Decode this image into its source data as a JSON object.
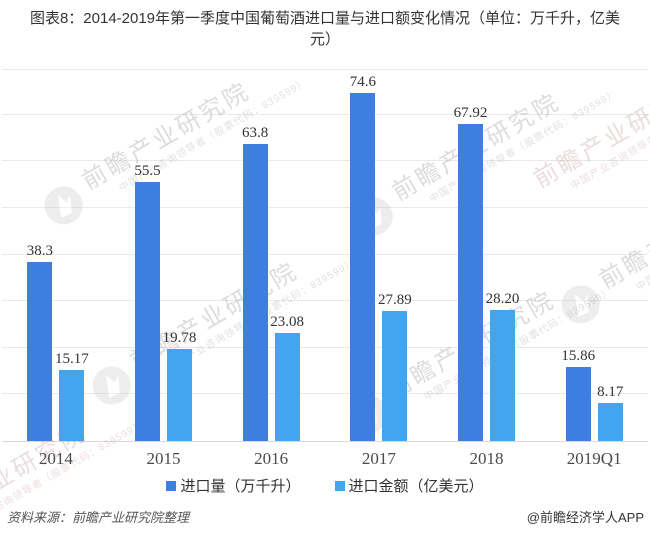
{
  "title": "图表8：2014-2019年第一季度中国葡萄酒进口量与进口额变化情况（单位：万千升，亿美元）",
  "chart_data": {
    "type": "bar",
    "categories": [
      "2014",
      "2015",
      "2016",
      "2017",
      "2018",
      "2019Q1"
    ],
    "series": [
      {
        "name": "进口量（万千升）",
        "values": [
          38.3,
          55.5,
          63.8,
          74.6,
          67.92,
          15.86
        ],
        "labels": [
          "38.3",
          "55.5",
          "63.8",
          "74.6",
          "67.92",
          "15.86"
        ],
        "color": "#3e7ee0"
      },
      {
        "name": "进口金额（亿美元）",
        "values": [
          15.17,
          19.78,
          23.08,
          27.89,
          28.2,
          8.17
        ],
        "labels": [
          "15.17",
          "19.78",
          "23.08",
          "27.89",
          "28.20",
          "8.17"
        ],
        "color": "#41a6ee"
      }
    ],
    "title": "图表8：2014-2019年第一季度中国葡萄酒进口量与进口额变化情况（单位：万千升，亿美元）",
    "xlabel": "",
    "ylabel": "",
    "ylim": [
      0,
      80
    ],
    "gridline_step": 10,
    "grid": true,
    "legend_position": "bottom",
    "y_axis_labels_visible": false
  },
  "footer": {
    "source": "资料来源：前瞻产业研究院整理",
    "credit": "@前瞻经济学人APP"
  },
  "watermark": {
    "text": "前瞻产业研究院",
    "subtext": "中国产业咨询领导者（股票代码：839599）"
  },
  "colors": {
    "bar_primary": "#3e7ee0",
    "bar_secondary": "#41a6ee",
    "gridline": "#e9e9e9",
    "axis_line": "#d9d9d9",
    "label_text": "#333333"
  }
}
